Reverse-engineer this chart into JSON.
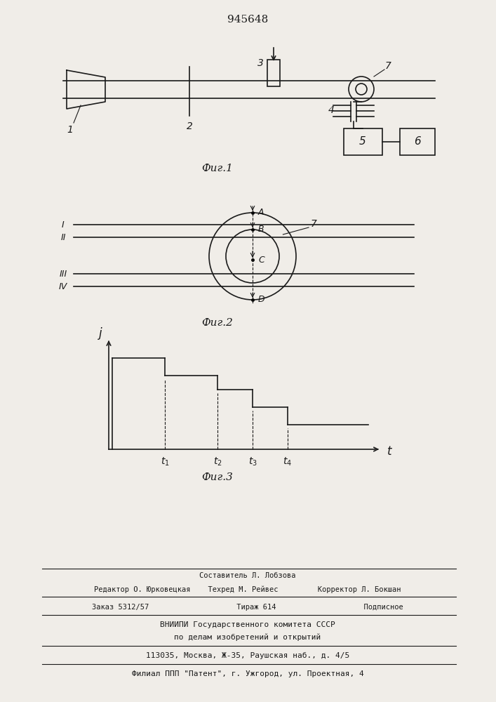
{
  "title": "945648",
  "fig1_label": "Фиг.1",
  "fig2_label": "Фиг.2",
  "fig3_label": "Фиг.3",
  "bg_color": "#f0ede8",
  "line_color": "#1a1a1a",
  "footer_lines": [
    "Составитель Л. Лобзова",
    "Редактор О. Юрковецкая    Техред М. Рейвес         Корректор Л. Бокшан",
    "Заказ 5312/57                    Тираж 614                    Подписное",
    "ВНИИПИ Государственного комитета СССР",
    "по делам изобретений и открытий",
    "113035, Москва, Ж-35, Раушская наб., д. 4/5",
    "Филиал ППП \"Патент\", г. Ужгород, ул. Проектная, 4"
  ]
}
